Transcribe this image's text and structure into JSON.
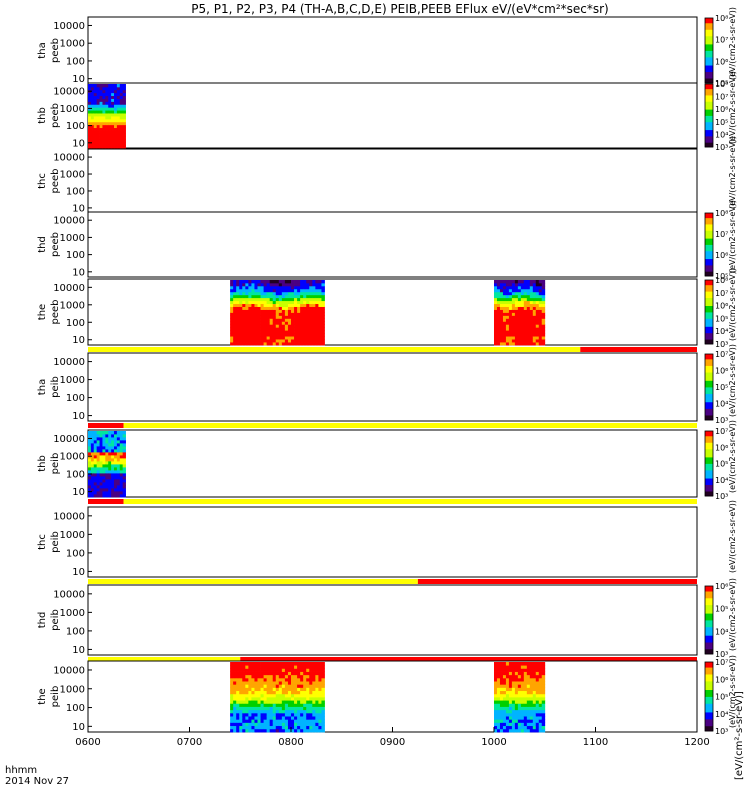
{
  "chart_data": {
    "type": "heatmap",
    "title": "P5, P1, P2, P3, P4 (TH-A,B,C,D,E) PEIB,PEEB EFlux eV/(eV*cm²*sec*sr)",
    "x_ticks": [
      "0600",
      "0700",
      "0800",
      "0900",
      "1000",
      "1100",
      "1200"
    ],
    "x_range_hours": [
      6,
      12
    ],
    "x_label": "hhmm",
    "date_label": "2014 Nov 27",
    "y_scale": "log",
    "y_ticks_full": [
      "10",
      "100",
      "1000",
      "10000"
    ],
    "colorbar_unit_label": "[eV/(cm²-s-sr-eV)]",
    "colormap": [
      "#200020",
      "#4b0082",
      "#0000ff",
      "#00b4ff",
      "#00e6a0",
      "#00d000",
      "#c8ff00",
      "#ffff00",
      "#ffa500",
      "#ff0000"
    ],
    "mode_bar_colors": {
      "slow": "#ffff00",
      "fast": "#ff0000"
    },
    "panels": [
      {
        "probe": "tha",
        "species": "peeb",
        "colorbar_ticks": [
          "10⁵",
          "10⁶",
          "10⁷",
          "10⁸"
        ],
        "colorbar_label": "(eV/(cm2-s-sr-eV))",
        "data": []
      },
      {
        "probe": "thb",
        "species": "peeb",
        "colorbar_ticks": [
          "10³",
          "10⁴",
          "10⁵",
          "10⁶",
          "10⁷",
          "10⁸"
        ],
        "colorbar_label": "(eV/(cm2-s-sr-eV))",
        "data": [
          [
            6.0,
            6.37,
            "blocks"
          ]
        ]
      },
      {
        "probe": "thc",
        "species": "peeb",
        "colorbar_ticks": [],
        "colorbar_label": "(eV/(cm2-s-sr-eV))",
        "data": []
      },
      {
        "probe": "thd",
        "species": "peeb",
        "colorbar_ticks": [
          "10⁵",
          "10⁶",
          "10⁷",
          "10⁸"
        ],
        "colorbar_label": "(eV/(cm2-s-sr-eV))",
        "data": []
      },
      {
        "probe": "the",
        "species": "peeb",
        "colorbar_ticks": [
          "10³",
          "10⁴",
          "10⁵",
          "10⁶",
          "10⁷",
          "10⁸"
        ],
        "colorbar_label": "(eV/(cm2-s-sr-eV))",
        "data": [
          [
            7.4,
            8.33,
            "electron"
          ],
          [
            10.0,
            10.5,
            "electron"
          ]
        ],
        "mode_bar": [
          [
            6.0,
            10.85,
            "slow"
          ],
          [
            10.85,
            12.0,
            "fast"
          ]
        ]
      },
      {
        "probe": "tha",
        "species": "peib",
        "colorbar_ticks": [
          "10³",
          "10⁴",
          "10⁵",
          "10⁶",
          "10⁷"
        ],
        "colorbar_label": "(eV/(cm2-s-sr-eV))",
        "data": [],
        "mode_bar": [
          [
            6.0,
            6.35,
            "fast"
          ],
          [
            6.35,
            12.0,
            "slow"
          ]
        ]
      },
      {
        "probe": "thb",
        "species": "peib",
        "colorbar_ticks": [
          "10³",
          "10⁴",
          "10⁵",
          "10⁶",
          "10⁷"
        ],
        "colorbar_label": "(eV/(cm2-s-sr-eV))",
        "data": [
          [
            6.0,
            6.37,
            "ionb"
          ]
        ],
        "mode_bar": [
          [
            6.0,
            6.35,
            "fast"
          ],
          [
            6.35,
            12.0,
            "slow"
          ]
        ]
      },
      {
        "probe": "thc",
        "species": "peib",
        "colorbar_ticks": [],
        "colorbar_label": "(eV/(cm2-s-sr-eV))",
        "data": [],
        "mode_bar": [
          [
            6.0,
            9.25,
            "slow"
          ],
          [
            9.25,
            12.0,
            "fast"
          ]
        ]
      },
      {
        "probe": "thd",
        "species": "peib",
        "colorbar_ticks": [
          "10³",
          "10⁴",
          "10⁵",
          "10⁶"
        ],
        "colorbar_label": "(eV/(cm2-s-sr-eV))",
        "data": [],
        "mode_bar": [
          [
            6.0,
            7.5,
            "slow"
          ],
          [
            7.5,
            12.0,
            "fast"
          ]
        ]
      },
      {
        "probe": "the",
        "species": "peib",
        "colorbar_ticks": [
          "10³",
          "10⁴",
          "10⁵",
          "10⁶",
          "10⁷"
        ],
        "colorbar_label": "(eV/(cm2-s-sr-eV))",
        "data": [
          [
            7.4,
            8.33,
            "ion"
          ],
          [
            10.0,
            10.5,
            "ion"
          ]
        ]
      }
    ]
  }
}
